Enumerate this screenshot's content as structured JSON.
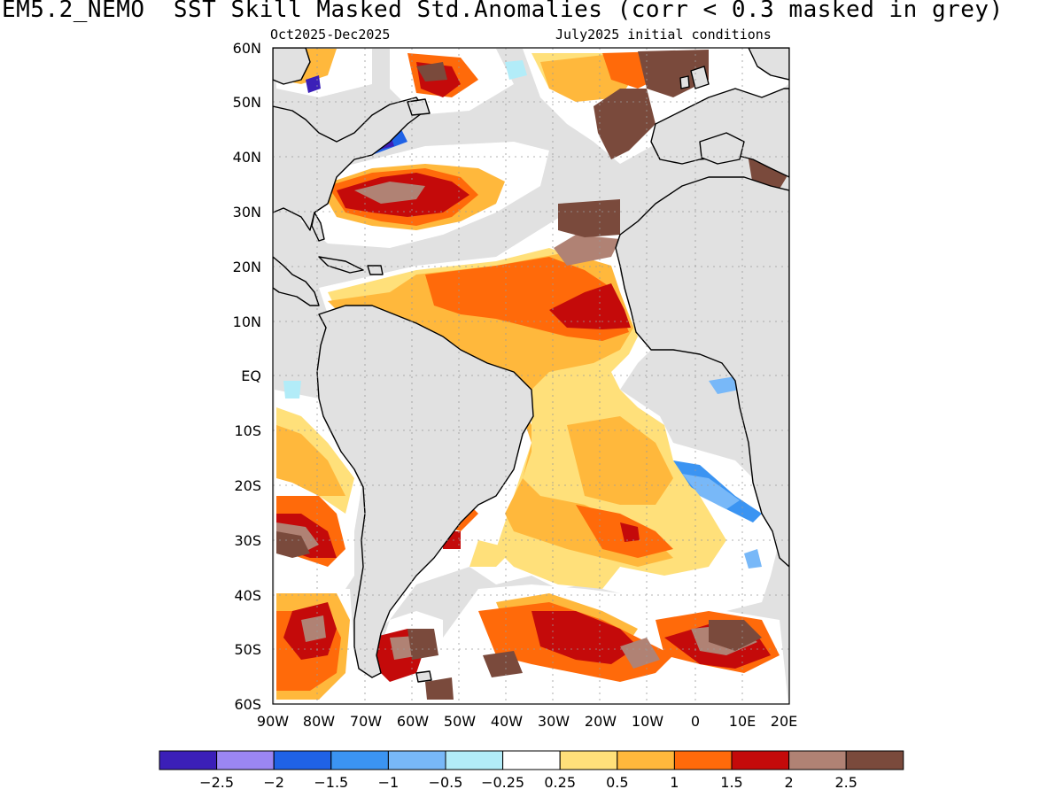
{
  "title": "EM5.2_NEMO  SST Skill Masked Std.Anomalies (corr < 0.3 masked in grey)",
  "subtitle_left": "Oct2025-Dec2025",
  "subtitle_right": "July2025 initial conditions",
  "map": {
    "lon_range": [
      -90,
      20
    ],
    "lat_range": [
      -60,
      60
    ],
    "lat_ticks": [
      "60N",
      "50N",
      "40N",
      "30N",
      "20N",
      "10N",
      "EQ",
      "10S",
      "20S",
      "30S",
      "40S",
      "50S",
      "60S"
    ],
    "lon_ticks": [
      "90W",
      "80W",
      "70W",
      "60W",
      "50W",
      "40W",
      "30W",
      "20W",
      "10W",
      "0",
      "10E",
      "20E"
    ],
    "mask_color": "#e1e1e1",
    "grid": "dotted"
  },
  "colorbar": {
    "bins": [
      {
        "color": "#3b1fb8"
      },
      {
        "color": "#9b86f2"
      },
      {
        "color": "#1f62e6"
      },
      {
        "color": "#3b94f2"
      },
      {
        "color": "#78b8f8"
      },
      {
        "color": "#b2ecf8"
      },
      {
        "color": "#ffffff"
      },
      {
        "color": "#ffe07a"
      },
      {
        "color": "#ffb83c"
      },
      {
        "color": "#ff6a0a"
      },
      {
        "color": "#c40a0a"
      },
      {
        "color": "#b08274"
      },
      {
        "color": "#7a4a3c"
      }
    ],
    "labels": [
      "-2.5",
      "-2",
      "-1.5",
      "-1",
      "-0.5",
      "-0.25",
      "0.25",
      "0.5",
      "1",
      "1.5",
      "2",
      "2.5"
    ]
  }
}
